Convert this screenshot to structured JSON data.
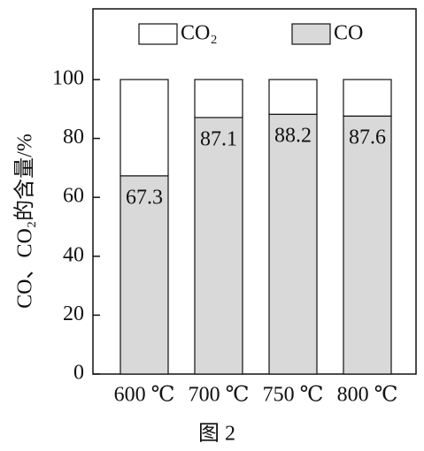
{
  "chart_data": {
    "type": "stacked_bar",
    "caption": "图 2",
    "ylabel": "CO、CO₂的含量/%",
    "categories": [
      "600 ℃",
      "700 ℃",
      "750 ℃",
      "800 ℃"
    ],
    "series": [
      {
        "name": "CO",
        "color": "#d9d9d9",
        "values": [
          67.3,
          87.1,
          88.2,
          87.6
        ]
      },
      {
        "name": "CO₂",
        "color": "#ffffff",
        "values": [
          32.7,
          12.9,
          11.8,
          12.4
        ]
      }
    ],
    "data_labels_series": "CO",
    "ylim": [
      0,
      124
    ],
    "yticks": [
      0,
      20,
      40,
      60,
      80,
      100
    ],
    "legend": "top"
  }
}
